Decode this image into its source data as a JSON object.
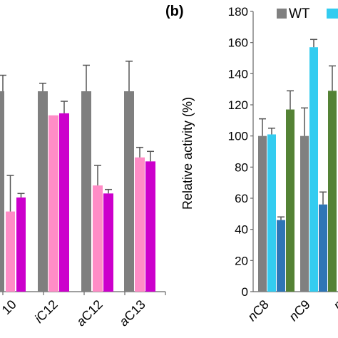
{
  "chart_data": [
    {
      "type": "bar",
      "panel_label": "",
      "categories": [
        "10",
        "iC12",
        "aC12",
        "aC13"
      ],
      "series": [
        {
          "values": [
            100,
            100,
            100,
            100
          ],
          "errors": [
            8,
            4,
            13,
            15
          ],
          "color": "#7f7f7f"
        },
        {
          "values": [
            null,
            88,
            53,
            67
          ],
          "errors": [
            null,
            0,
            10,
            5
          ],
          "color": "#ff8cc6"
        },
        {
          "values": [
            40,
            89,
            49,
            65
          ],
          "errors": [
            18,
            6,
            2,
            5
          ],
          "color": "#cc00cc"
        },
        {
          "values": [
            47,
            null,
            null,
            null
          ],
          "errors": [
            2,
            null,
            null,
            null
          ],
          "color": "#cc00cc"
        }
      ],
      "category_prefix": [
        "",
        "i",
        "a",
        "a"
      ],
      "category_suffix": [
        "10",
        "C12",
        "C12",
        "C13"
      ],
      "note": ""
    },
    {
      "type": "bar",
      "panel_label": "(b)",
      "ylabel": "Relative activity (%)",
      "ylim": [
        0,
        180
      ],
      "yticks": [
        0,
        20,
        40,
        60,
        80,
        100,
        120,
        140,
        160,
        180
      ],
      "legend": [
        {
          "name": "WT",
          "color": "#808080"
        },
        {
          "name": "",
          "color": "#33ccf0"
        }
      ],
      "legend_position": "top-right",
      "category_prefix": [
        "n",
        "n"
      ],
      "category_suffix": [
        "C8",
        "C9"
      ],
      "series": [
        {
          "name": "WT",
          "values": [
            100,
            100
          ],
          "errors": [
            11,
            18
          ],
          "color": "#808080"
        },
        {
          "values": [
            101,
            157
          ],
          "errors": [
            4,
            5
          ],
          "color": "#33ccf0"
        },
        {
          "values": [
            46,
            56
          ],
          "errors": [
            2,
            8
          ],
          "color": "#2e75b6"
        },
        {
          "values": [
            117,
            129
          ],
          "errors": [
            12,
            16
          ],
          "color": "#548235"
        }
      ]
    }
  ],
  "texts": {
    "panel_b": "(b)",
    "ylabel": "Relative activity (%)",
    "legend_wt": "WT"
  }
}
